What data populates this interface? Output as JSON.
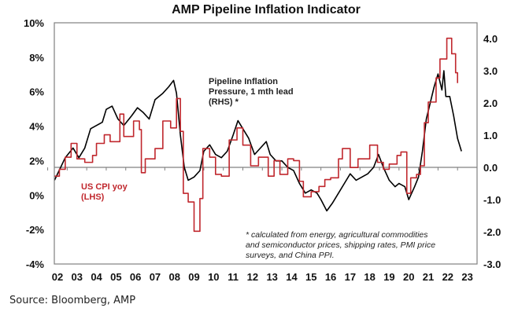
{
  "chart_data": {
    "type": "line",
    "title": "AMP Pipeline Inflation Indicator",
    "source": "Source: Bloomberg, AMP",
    "x_tick_labels": [
      "02",
      "03",
      "04",
      "05",
      "06",
      "07",
      "08",
      "09",
      "10",
      "11",
      "12",
      "13",
      "14",
      "15",
      "16",
      "17",
      "18",
      "19",
      "20",
      "21",
      "22",
      "23"
    ],
    "y_left": {
      "ticks": [
        "10%",
        "8%",
        "6%",
        "4%",
        "2%",
        "0%",
        "-2%",
        "-4%"
      ],
      "ylim": [
        -4,
        10
      ]
    },
    "y_right": {
      "ticks": [
        "4.0",
        "3.0",
        "2.0",
        "1.0",
        "0.0",
        "-1.0",
        "-2.0",
        "-3.0"
      ],
      "ylim": [
        -3,
        4.5
      ]
    },
    "grid": false,
    "annotations": {
      "pipeline_label": [
        "Pipeline Inflation",
        "Pressure, 1 mth lead",
        "(RHS) *"
      ],
      "cpi_label": [
        "US CPI yoy",
        "(LHS)"
      ],
      "footnote": [
        "* calculated from energy, agricultural commodities",
        "and semiconductor prices, shipping rates, PMI price",
        "surveys, and China PPI."
      ]
    },
    "colors": {
      "cpi": "#c0272d",
      "pipeline": "#000000",
      "axis": "#808080"
    },
    "series": [
      {
        "name": "US CPI yoy (LHS)",
        "axis": "left",
        "x": [
          2002.35,
          2002.6,
          2002.9,
          2003.2,
          2003.5,
          2003.9,
          2004.3,
          2004.5,
          2004.9,
          2005.2,
          2005.7,
          2005.9,
          2006.4,
          2006.7,
          2006.8,
          2007.0,
          2007.5,
          2007.9,
          2008.3,
          2008.6,
          2008.8,
          2008.95,
          2009.2,
          2009.5,
          2009.8,
          2009.95,
          2010.3,
          2010.6,
          2010.9,
          2011.3,
          2011.7,
          2012.0,
          2012.4,
          2012.8,
          2013.3,
          2013.6,
          2013.9,
          2014.3,
          2014.6,
          2014.9,
          2015.1,
          2015.5,
          2015.9,
          2016.2,
          2016.5,
          2016.9,
          2017.1,
          2017.5,
          2017.9,
          2018.5,
          2018.9,
          2019.2,
          2019.5,
          2019.9,
          2020.1,
          2020.4,
          2020.6,
          2020.9,
          2021.1,
          2021.3,
          2021.5,
          2021.9,
          2022.1,
          2022.45,
          2022.7,
          2022.9,
          2023.0
        ],
        "values": [
          1.1,
          1.5,
          2.2,
          3.0,
          2.1,
          1.9,
          2.3,
          3.0,
          3.5,
          3.1,
          4.7,
          3.4,
          4.3,
          3.8,
          1.3,
          2.1,
          2.7,
          4.3,
          3.9,
          5.6,
          3.7,
          0.1,
          -0.4,
          -2.1,
          -0.2,
          2.7,
          2.2,
          1.2,
          1.1,
          3.2,
          3.9,
          2.9,
          1.7,
          2.2,
          1.1,
          2.0,
          1.2,
          2.1,
          2.0,
          0.8,
          -0.1,
          0.2,
          0.5,
          0.9,
          1.0,
          2.1,
          2.7,
          1.6,
          2.1,
          2.9,
          1.9,
          1.5,
          1.8,
          2.3,
          2.5,
          0.1,
          1.0,
          1.2,
          1.7,
          4.2,
          5.4,
          6.8,
          7.9,
          9.1,
          8.2,
          7.1,
          6.5
        ]
      },
      {
        "name": "Pipeline Inflation Pressure, 1 mth lead (RHS)",
        "axis": "right",
        "x": [
          2002.35,
          2002.9,
          2003.3,
          2003.6,
          2003.9,
          2004.2,
          2004.5,
          2004.8,
          2005.0,
          2005.3,
          2005.6,
          2005.9,
          2006.3,
          2006.6,
          2006.9,
          2007.2,
          2007.5,
          2007.9,
          2008.2,
          2008.45,
          2008.6,
          2008.8,
          2009.0,
          2009.2,
          2009.5,
          2009.8,
          2010.0,
          2010.3,
          2010.6,
          2010.9,
          2011.2,
          2011.5,
          2011.75,
          2012.0,
          2012.3,
          2012.6,
          2012.9,
          2013.2,
          2013.4,
          2013.7,
          2014.0,
          2014.3,
          2014.6,
          2014.9,
          2015.2,
          2015.5,
          2015.8,
          2016.0,
          2016.3,
          2016.6,
          2016.9,
          2017.2,
          2017.5,
          2017.8,
          2018.1,
          2018.4,
          2018.7,
          2018.95,
          2019.2,
          2019.5,
          2019.8,
          2020.0,
          2020.3,
          2020.5,
          2020.8,
          2021.0,
          2021.2,
          2021.4,
          2021.6,
          2021.8,
          2022.0,
          2022.2,
          2022.3,
          2022.4,
          2022.6,
          2022.8,
          2023.0,
          2023.2
        ],
        "values": [
          -0.4,
          0.3,
          0.6,
          0.3,
          0.6,
          1.2,
          1.3,
          1.4,
          1.8,
          1.9,
          1.5,
          1.3,
          1.6,
          1.85,
          1.7,
          1.5,
          2.1,
          2.3,
          2.5,
          2.7,
          2.3,
          1.0,
          0.0,
          -0.4,
          -0.3,
          -0.1,
          0.5,
          0.7,
          0.4,
          0.3,
          0.5,
          1.0,
          1.45,
          1.2,
          0.9,
          0.4,
          0.6,
          0.8,
          0.4,
          0.2,
          0.2,
          0.0,
          -0.1,
          -0.5,
          -0.8,
          -0.7,
          -0.8,
          -1.0,
          -1.35,
          -1.1,
          -0.8,
          -0.5,
          -0.2,
          -0.4,
          -0.3,
          -0.2,
          0.0,
          0.4,
          0.0,
          -0.4,
          -0.6,
          -0.5,
          -0.6,
          -1.0,
          -0.6,
          -0.3,
          0.5,
          1.5,
          2.0,
          2.5,
          2.9,
          2.4,
          3.0,
          2.2,
          2.2,
          1.6,
          0.9,
          0.5
        ]
      }
    ]
  }
}
